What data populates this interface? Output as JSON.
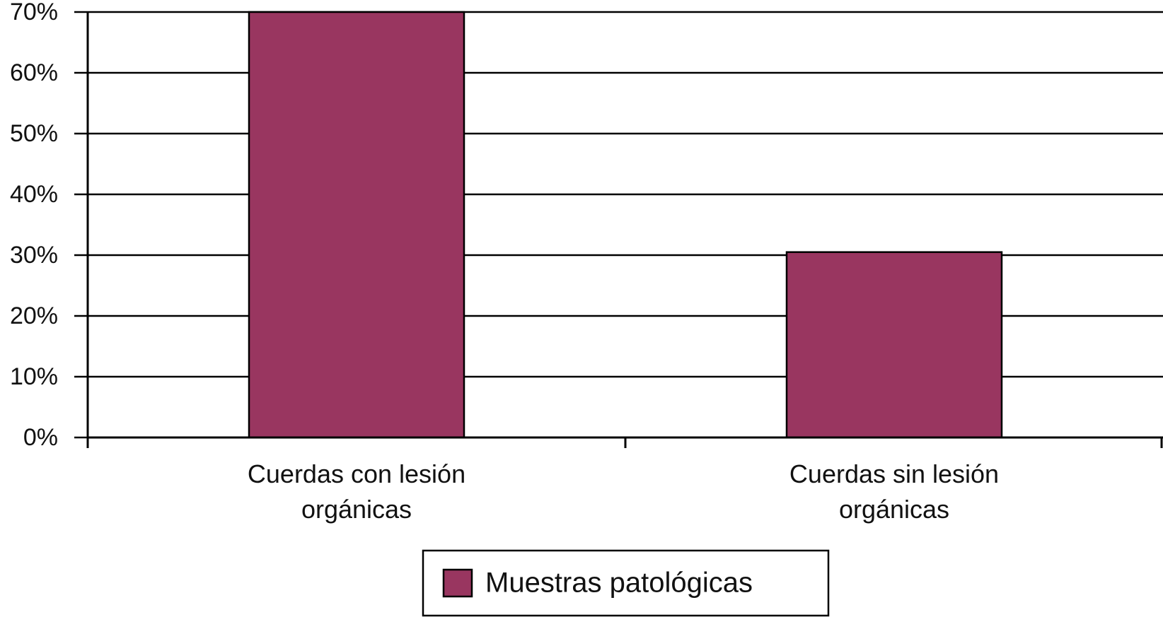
{
  "chart_data": {
    "type": "bar",
    "categories": [
      "Cuerdas con lesión orgánicas",
      "Cuerdas sin lesión orgánicas"
    ],
    "series": [
      {
        "name": "Muestras patológicas",
        "color": "#993660",
        "values": [
          70,
          30.5
        ]
      }
    ],
    "ylim": [
      0,
      70
    ],
    "yticks": [
      {
        "value": 0,
        "label": "0%"
      },
      {
        "value": 10,
        "label": "10%"
      },
      {
        "value": 20,
        "label": "20%"
      },
      {
        "value": 30,
        "label": "30%"
      },
      {
        "value": 40,
        "label": "40%"
      },
      {
        "value": 50,
        "label": "50%"
      },
      {
        "value": 60,
        "label": "60%"
      },
      {
        "value": 70,
        "label": "70%"
      }
    ],
    "grid": true,
    "legend": "bottom"
  }
}
